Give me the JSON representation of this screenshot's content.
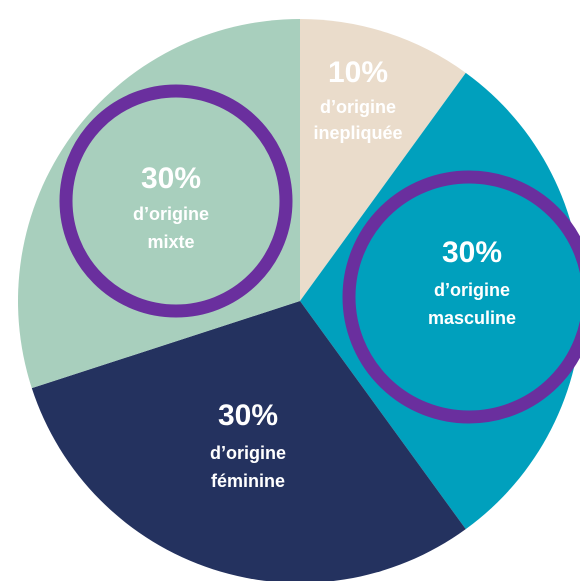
{
  "chart_data": {
    "type": "pie",
    "title": "",
    "slices": [
      {
        "label": "d’origine inepliquée",
        "label_lines": [
          "d’origine",
          "inepliquée"
        ],
        "value": 10,
        "value_label": "10%",
        "color": "#eadccb",
        "text_color": "#ffffff",
        "highlight": false
      },
      {
        "label": "d’origine masculine",
        "label_lines": [
          "d’origine",
          "masculine"
        ],
        "value": 30,
        "value_label": "30%",
        "color": "#00a0bd",
        "text_color": "#ffffff",
        "highlight": true
      },
      {
        "label": "d’origine féminine",
        "label_lines": [
          "d’origine",
          "féminine"
        ],
        "value": 30,
        "value_label": "30%",
        "color": "#24325f",
        "text_color": "#ffffff",
        "highlight": false
      },
      {
        "label": "d’origine mixte",
        "label_lines": [
          "d’origine",
          "mixte"
        ],
        "value": 30,
        "value_label": "30%",
        "color": "#a8cfbd",
        "text_color": "#ffffff",
        "highlight": true
      }
    ],
    "highlight_ring_color": "#6a2f9e",
    "start_at": "top",
    "direction": "clockwise",
    "legend": "none"
  }
}
